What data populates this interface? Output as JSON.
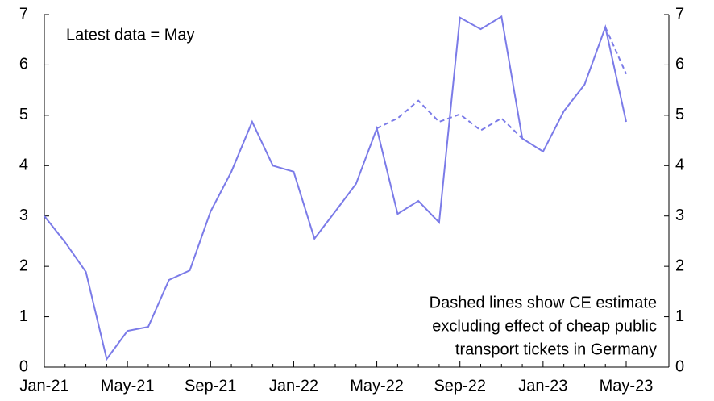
{
  "chart_data": {
    "type": "line",
    "categories": [
      "Jan-21",
      null,
      null,
      null,
      "May-21",
      null,
      null,
      null,
      "Sep-21",
      null,
      null,
      null,
      "Jan-22",
      null,
      null,
      null,
      "May-22",
      null,
      null,
      null,
      "Sep-22",
      null,
      null,
      null,
      "Jan-23",
      null,
      null,
      null,
      "May-23"
    ],
    "series": [
      {
        "color": "#7b7be8",
        "dashed": false,
        "values": [
          3.0,
          2.48,
          1.89,
          0.16,
          0.72,
          0.8,
          1.73,
          1.92,
          3.09,
          3.88,
          4.87,
          4.0,
          3.88,
          2.55,
          3.09,
          3.64,
          4.74,
          3.04,
          3.3,
          2.87,
          6.94,
          6.71,
          6.96,
          4.54,
          4.28,
          5.08,
          5.61,
          6.75,
          4.87
        ]
      },
      {
        "color": "#7b7be8",
        "dashed": true,
        "values": [
          null,
          null,
          null,
          null,
          null,
          null,
          null,
          null,
          null,
          null,
          null,
          null,
          null,
          null,
          null,
          null,
          4.74,
          4.94,
          5.29,
          4.87,
          5.02,
          4.7,
          4.94,
          4.54,
          null,
          null,
          null,
          6.75,
          5.82
        ]
      }
    ],
    "ylim": [
      0,
      7
    ],
    "yticks": [
      0,
      1,
      2,
      3,
      4,
      5,
      6,
      7
    ],
    "y2lim": [
      0,
      7
    ],
    "y2ticks": [
      0,
      1,
      2,
      3,
      4,
      5,
      6,
      7
    ],
    "annotations": [
      "Latest data = May",
      [
        "Dashed lines show CE estimate",
        "excluding effect of cheap public",
        "transport tickets in Germany"
      ]
    ]
  }
}
